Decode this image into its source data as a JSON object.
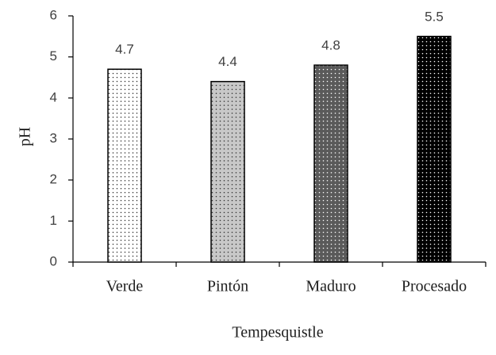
{
  "chart_data": {
    "type": "bar",
    "x_label": "Tempesquistle",
    "y_label": "pH",
    "categories": [
      "Verde",
      "Pintón",
      "Maduro",
      "Procesado"
    ],
    "values": [
      4.7,
      4.4,
      4.8,
      5.5
    ],
    "colors": [
      "#ffffff",
      "#c8c8c8",
      "#5a5a5a",
      "#000000"
    ],
    "ylim": [
      0,
      6
    ],
    "yticks": [
      0,
      1,
      2,
      3,
      4,
      5,
      6
    ],
    "grid": false
  }
}
